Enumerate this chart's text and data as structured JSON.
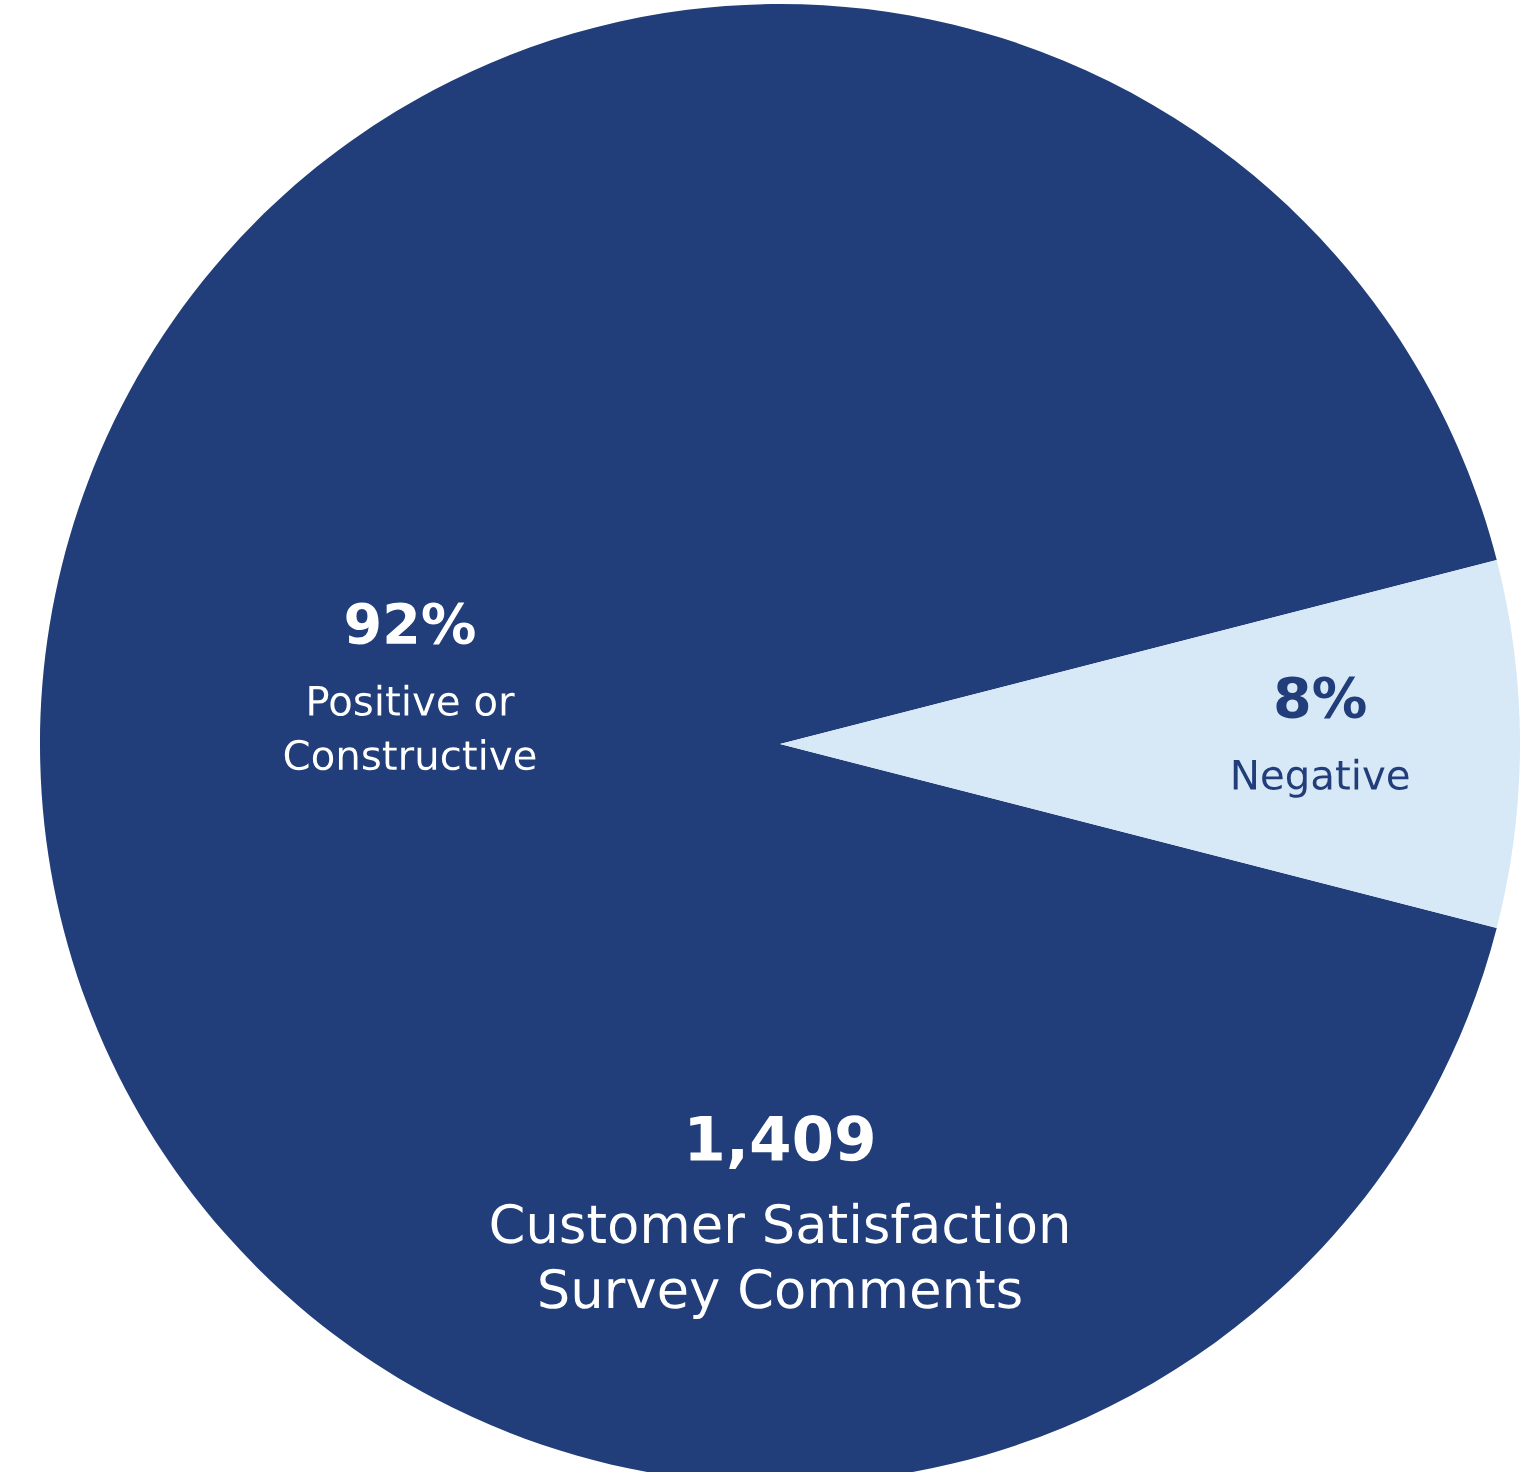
{
  "chart_data": {
    "type": "pie",
    "categories": [
      "Positive or\nConstructive",
      "Negative"
    ],
    "values": [
      92,
      8
    ],
    "value_labels": [
      "92%",
      "8%"
    ],
    "colors": [
      "#213e7a",
      "#d7e8f7"
    ],
    "annotations": [
      "1,409",
      "Customer Satisfaction\nSurvey Comments"
    ]
  }
}
